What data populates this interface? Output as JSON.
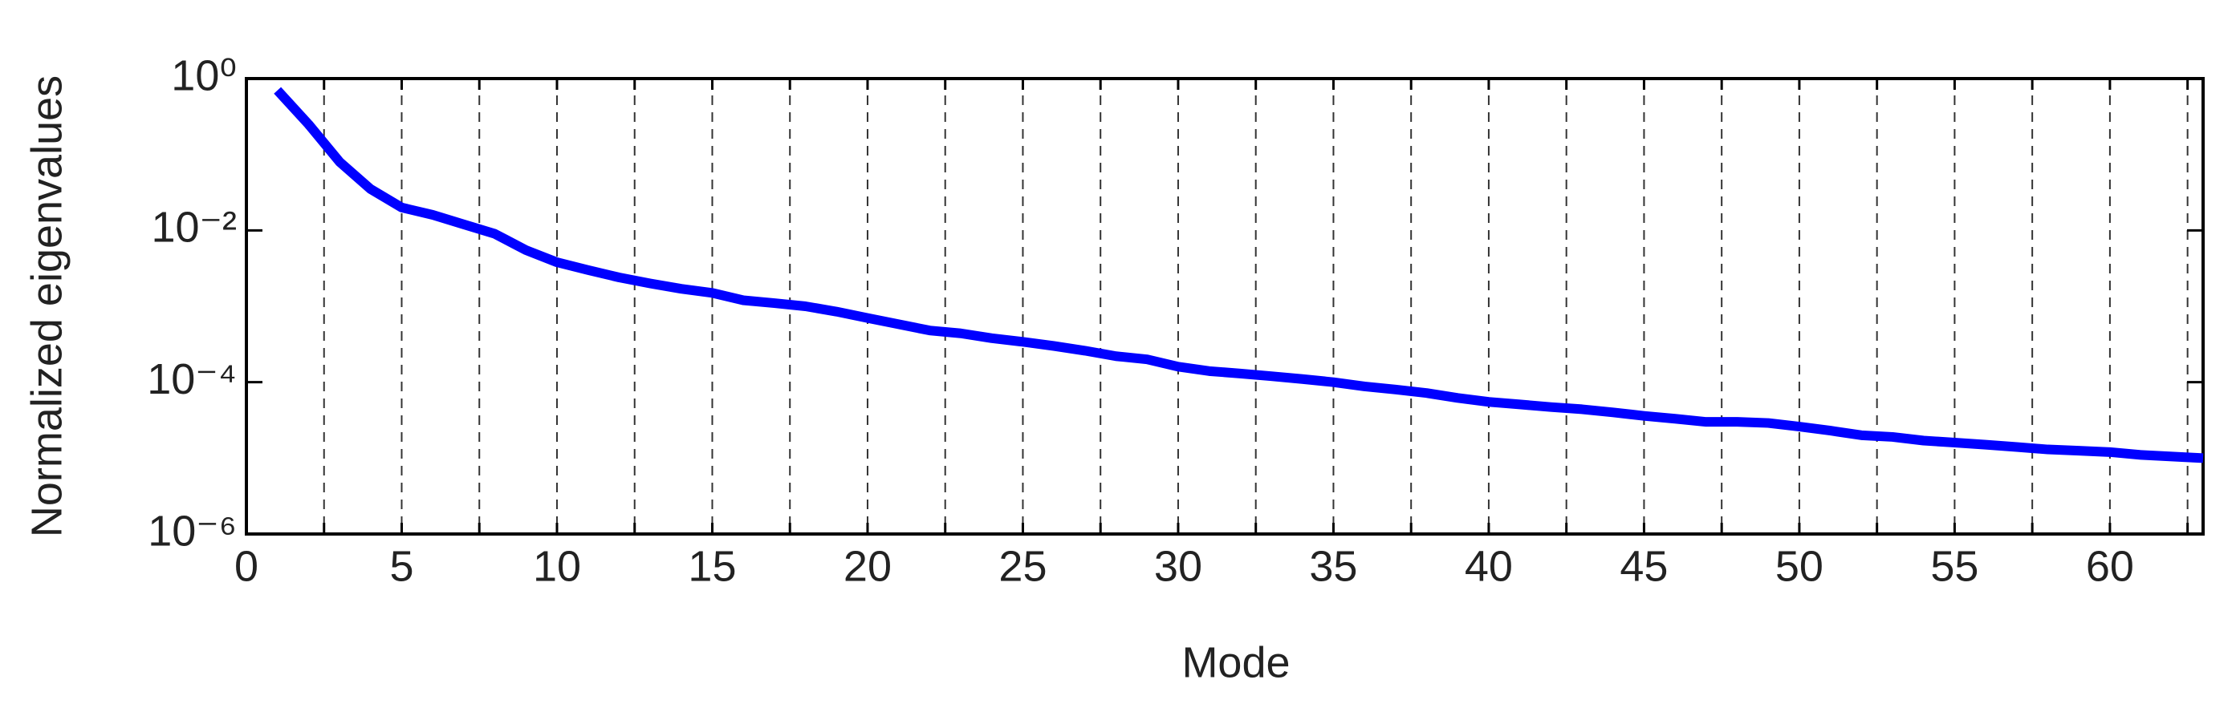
{
  "chart_data": {
    "type": "line",
    "x_label": "Mode",
    "y_label": "Normalized eigenvalues",
    "x": [
      1,
      2,
      3,
      4,
      5,
      6,
      7,
      8,
      9,
      10,
      11,
      12,
      13,
      14,
      15,
      16,
      17,
      18,
      19,
      20,
      21,
      22,
      23,
      24,
      25,
      26,
      27,
      28,
      29,
      30,
      31,
      32,
      33,
      34,
      35,
      36,
      37,
      38,
      39,
      40,
      41,
      42,
      43,
      44,
      45,
      46,
      47,
      48,
      49,
      50,
      51,
      52,
      53,
      54,
      55,
      56,
      57,
      58,
      59,
      60,
      61,
      62,
      63
    ],
    "series": [
      {
        "color": "#0000ff",
        "values": [
          0.7,
          0.25,
          0.08,
          0.035,
          0.02,
          0.016,
          0.012,
          0.009,
          0.0055,
          0.0038,
          0.003,
          0.0024,
          0.002,
          0.0017,
          0.0015,
          0.0012,
          0.0011,
          0.001,
          0.00085,
          0.0007,
          0.00058,
          0.00048,
          0.00044,
          0.00038,
          0.00034,
          0.0003,
          0.00026,
          0.00022,
          0.0002,
          0.00016,
          0.00014,
          0.00013,
          0.00012,
          0.00011,
          0.0001,
          8.8e-05,
          8e-05,
          7.2e-05,
          6.2e-05,
          5.5e-05,
          5.1e-05,
          4.7e-05,
          4.4e-05,
          4e-05,
          3.6e-05,
          3.3e-05,
          3e-05,
          3e-05,
          2.9e-05,
          2.6e-05,
          2.3e-05,
          2e-05,
          1.9e-05,
          1.7e-05,
          1.6e-05,
          1.5e-05,
          1.4e-05,
          1.3e-05,
          1.25e-05,
          1.2e-05,
          1.1e-05,
          1.05e-05,
          1e-05
        ]
      }
    ],
    "xlim": [
      0,
      63
    ],
    "xticks": [
      0,
      5,
      10,
      15,
      20,
      25,
      30,
      35,
      40,
      45,
      50,
      55,
      60
    ],
    "x_minor_ticks": [
      2.5,
      7.5,
      12.5,
      17.5,
      22.5,
      27.5,
      32.5,
      37.5,
      42.5,
      47.5,
      52.5,
      57.5,
      62.5
    ],
    "ylim": [
      1e-06,
      1
    ],
    "y_log": true,
    "yticks": [
      {
        "value": 1e-06,
        "label": "10⁻⁶"
      },
      {
        "value": 0.0001,
        "label": "10⁻⁴"
      },
      {
        "value": 0.01,
        "label": "10⁻²"
      },
      {
        "value": 1,
        "label": "10⁰"
      }
    ],
    "grid": true
  }
}
